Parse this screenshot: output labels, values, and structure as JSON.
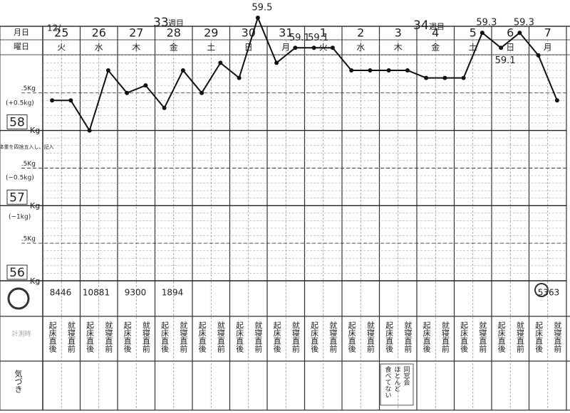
{
  "header": {
    "month": "12/",
    "date_label": "月日",
    "weekday_label": "曜日",
    "week_label": "週目",
    "weeks": [
      "33",
      "34"
    ]
  },
  "days": [
    "25",
    "26",
    "27",
    "28",
    "29",
    "30",
    "31",
    "1",
    "2",
    "3",
    "4",
    "5",
    "6",
    "7"
  ],
  "weekdays": [
    "火",
    "水",
    "木",
    "金",
    "土",
    "日",
    "月",
    "火",
    "水",
    "木",
    "金",
    "土",
    "日",
    "月"
  ],
  "left_labels": {
    "plus_half": "(+0.5kg)",
    "minus_half": "(−0.5kg)",
    "minus_one": "(−1kg)",
    "unit": "Kg",
    "instruction": "今の体重を四捨五入し、記入"
  },
  "steps": [
    8446,
    10881,
    9300,
    1894,
    5363
  ],
  "notes": {
    "record_label": "計測時",
    "kizuki_label": "気づき",
    "memo": [
      "同窓会",
      "ほとんど",
      "食べてない"
    ]
  },
  "chart_data": {
    "type": "line",
    "color": "#111111",
    "categories": [
      "起床直後",
      "就寝直前",
      "起床直後",
      "就寝直前",
      "起床直後",
      "就寝直前",
      "起床直後",
      "就寝直前",
      "起床直後",
      "就寝直前",
      "起床直後",
      "就寝直前",
      "起床直後",
      "就寝直前",
      "起床直後",
      "就寝直前",
      "起床直後",
      "就寝直前",
      "起床直後",
      "就寝直前",
      "起床直後",
      "就寝直前",
      "起床直後",
      "就寝直前",
      "起床直後",
      "就寝直前",
      "起床直後",
      "就寝直前"
    ],
    "values": [
      58.4,
      58.4,
      58.0,
      58.8,
      58.5,
      58.6,
      58.3,
      58.8,
      58.5,
      58.9,
      58.7,
      59.5,
      58.9,
      59.1,
      59.1,
      59.1,
      58.8,
      58.8,
      58.8,
      58.8,
      58.7,
      58.7,
      58.7,
      59.3,
      59.1,
      59.3,
      59.0,
      58.4
    ],
    "value_labels": [
      null,
      null,
      null,
      null,
      null,
      null,
      null,
      null,
      null,
      null,
      null,
      "59.5",
      null,
      "59.1",
      "59.1",
      null,
      null,
      null,
      null,
      null,
      null,
      null,
      null,
      "59.3",
      "59.1",
      "59.3",
      null,
      null
    ],
    "ylim": [
      56,
      59.5
    ],
    "yticks": [
      {
        "value": 56,
        "label": "56"
      },
      {
        "value": 56.5,
        "label": ".5Kg"
      },
      {
        "value": 57,
        "label": "57"
      },
      {
        "value": 57.5,
        "label": ".5Kg"
      },
      {
        "value": 58,
        "label": "58"
      },
      {
        "value": 58.5,
        "label": ".5Kg"
      }
    ],
    "grid": true
  }
}
